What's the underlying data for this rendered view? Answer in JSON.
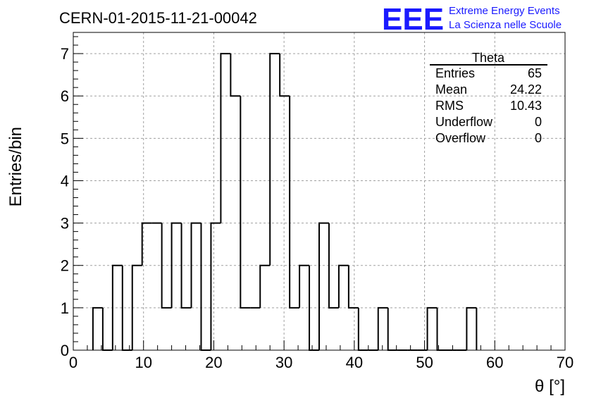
{
  "chart_data": {
    "type": "histogram",
    "title": "CERN-01-2015-11-21-00042",
    "xlabel": "θ [°]",
    "ylabel": "Entries/bin",
    "xlim": [
      0,
      70
    ],
    "ylim": [
      0,
      7.5
    ],
    "grid": true,
    "bin_width": 1.4,
    "x_ticks": [
      "0",
      "10",
      "20",
      "30",
      "40",
      "50",
      "60",
      "70"
    ],
    "y_ticks": [
      "0",
      "1",
      "2",
      "3",
      "4",
      "5",
      "6",
      "7"
    ],
    "bins": [
      {
        "x0": 2.8,
        "x1": 4.2,
        "count": 1
      },
      {
        "x0": 4.2,
        "x1": 5.6,
        "count": 0
      },
      {
        "x0": 5.6,
        "x1": 7.0,
        "count": 2
      },
      {
        "x0": 7.0,
        "x1": 8.4,
        "count": 0
      },
      {
        "x0": 8.4,
        "x1": 9.8,
        "count": 2
      },
      {
        "x0": 9.8,
        "x1": 11.2,
        "count": 3
      },
      {
        "x0": 11.2,
        "x1": 12.6,
        "count": 3
      },
      {
        "x0": 12.6,
        "x1": 14.0,
        "count": 1
      },
      {
        "x0": 14.0,
        "x1": 15.4,
        "count": 3
      },
      {
        "x0": 15.4,
        "x1": 16.8,
        "count": 1
      },
      {
        "x0": 16.8,
        "x1": 18.2,
        "count": 3
      },
      {
        "x0": 18.2,
        "x1": 19.6,
        "count": 0
      },
      {
        "x0": 19.6,
        "x1": 21.0,
        "count": 3
      },
      {
        "x0": 21.0,
        "x1": 22.4,
        "count": 7
      },
      {
        "x0": 22.4,
        "x1": 23.8,
        "count": 6
      },
      {
        "x0": 23.8,
        "x1": 25.2,
        "count": 1
      },
      {
        "x0": 25.2,
        "x1": 26.6,
        "count": 1
      },
      {
        "x0": 26.6,
        "x1": 28.0,
        "count": 2
      },
      {
        "x0": 28.0,
        "x1": 29.4,
        "count": 7
      },
      {
        "x0": 29.4,
        "x1": 30.8,
        "count": 6
      },
      {
        "x0": 30.8,
        "x1": 32.2,
        "count": 1
      },
      {
        "x0": 32.2,
        "x1": 33.6,
        "count": 2
      },
      {
        "x0": 33.6,
        "x1": 35.0,
        "count": 0
      },
      {
        "x0": 35.0,
        "x1": 36.4,
        "count": 3
      },
      {
        "x0": 36.4,
        "x1": 37.8,
        "count": 1
      },
      {
        "x0": 37.8,
        "x1": 39.2,
        "count": 2
      },
      {
        "x0": 39.2,
        "x1": 40.6,
        "count": 1
      },
      {
        "x0": 40.6,
        "x1": 42.0,
        "count": 0
      },
      {
        "x0": 42.0,
        "x1": 43.4,
        "count": 0
      },
      {
        "x0": 43.4,
        "x1": 44.8,
        "count": 1
      },
      {
        "x0": 44.8,
        "x1": 46.2,
        "count": 0
      },
      {
        "x0": 46.2,
        "x1": 47.6,
        "count": 0
      },
      {
        "x0": 47.6,
        "x1": 49.0,
        "count": 0
      },
      {
        "x0": 49.0,
        "x1": 50.4,
        "count": 0
      },
      {
        "x0": 50.4,
        "x1": 51.8,
        "count": 1
      },
      {
        "x0": 51.8,
        "x1": 53.2,
        "count": 0
      },
      {
        "x0": 53.2,
        "x1": 54.6,
        "count": 0
      },
      {
        "x0": 54.6,
        "x1": 56.0,
        "count": 0
      },
      {
        "x0": 56.0,
        "x1": 57.4,
        "count": 1
      }
    ],
    "stats_box": {
      "title": "Theta",
      "rows": [
        {
          "label": "Entries",
          "value": "65"
        },
        {
          "label": "Mean",
          "value": "24.22"
        },
        {
          "label": "RMS",
          "value": "10.43"
        },
        {
          "label": "Underflow",
          "value": "0"
        },
        {
          "label": "Overflow",
          "value": "0"
        }
      ]
    }
  },
  "logo": {
    "mark": "EEE",
    "line1": "Extreme Energy Events",
    "line2": "La Scienza nelle Scuole",
    "color": "#1a1aff"
  }
}
